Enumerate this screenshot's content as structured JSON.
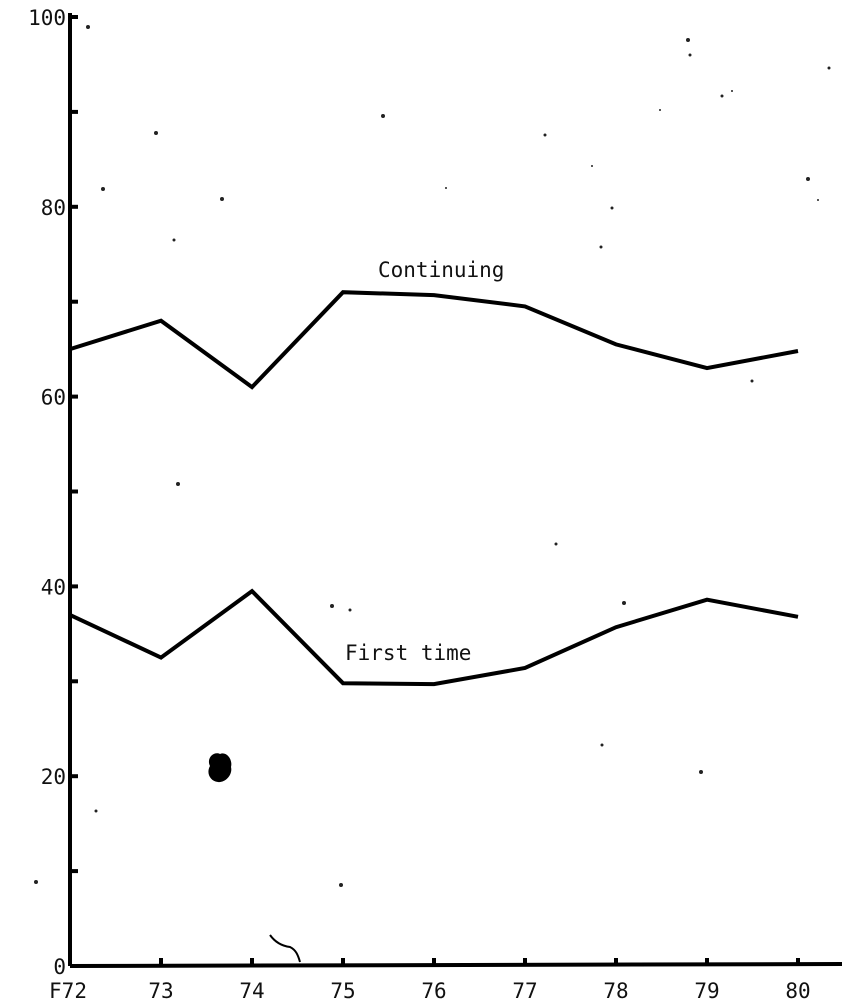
{
  "chart_data": {
    "type": "line",
    "x": [
      "F72",
      "73",
      "74",
      "75",
      "76",
      "77",
      "78",
      "79",
      "80"
    ],
    "y_ticks": [
      "0",
      "20",
      "40",
      "60",
      "80",
      "100"
    ],
    "ylim": [
      0,
      100
    ],
    "grid": false,
    "legend": "none (series labelled inline)",
    "series": [
      {
        "name": "Continuing",
        "values": [
          65,
          68,
          61,
          71,
          70.7,
          69.5,
          65.5,
          63,
          64.8
        ]
      },
      {
        "name": "First time",
        "values": [
          37,
          32.5,
          39.5,
          29.8,
          29.7,
          31.4,
          35.7,
          38.6,
          36.8
        ]
      }
    ],
    "colors": {
      "line": "#000000",
      "axis": "#000000",
      "text": "#111111"
    }
  }
}
